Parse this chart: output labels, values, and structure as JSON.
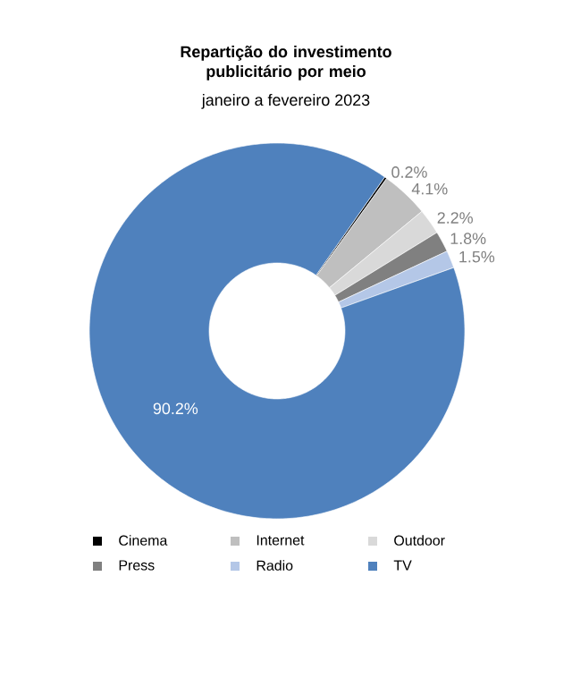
{
  "chart_data": {
    "type": "donut",
    "title": "Repartição do investimento publicitário por meio",
    "subtitle": "janeiro a fevereiro 2023",
    "categories": [
      "Cinema",
      "Internet",
      "Outdoor",
      "Press",
      "Radio",
      "TV"
    ],
    "values": [
      0.2,
      4.1,
      2.2,
      1.8,
      1.5,
      90.2
    ],
    "colors": [
      "#000000",
      "#bfbfbf",
      "#d9d9d9",
      "#808080",
      "#b4c7e7",
      "#4f81bd"
    ],
    "value_labels": [
      "0.2%",
      "4.1%",
      "2.2%",
      "1.8%",
      "1.5%",
      "90.2%"
    ],
    "legend": "bottom"
  }
}
